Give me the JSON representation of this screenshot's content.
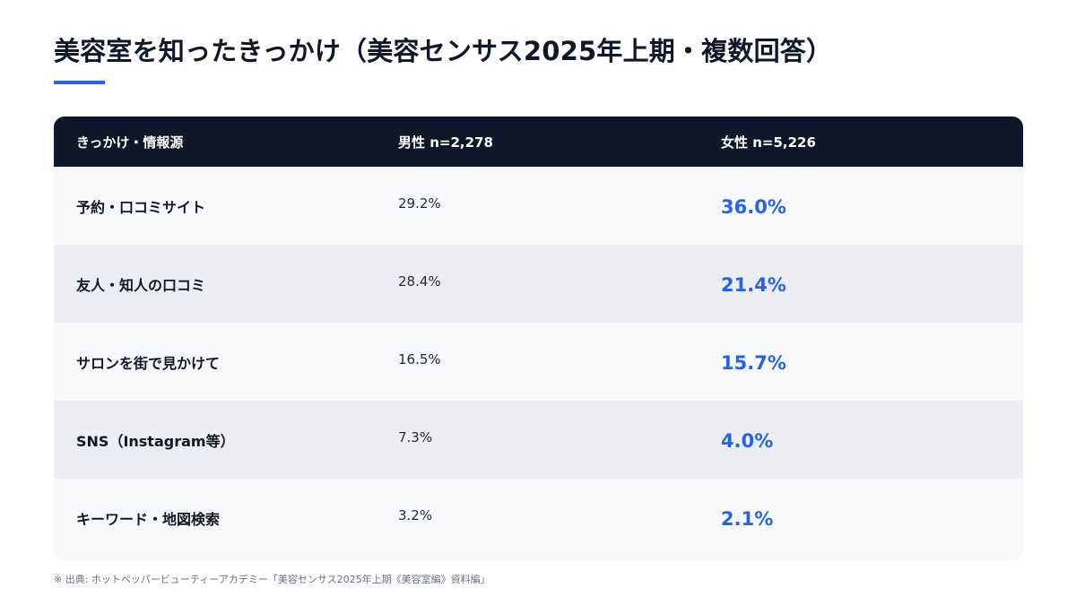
{
  "title": "美容室を知ったきっかけ（美容センサス2025年上期・複数回答）",
  "accent_color": "#2563eb",
  "table": {
    "headers": {
      "source": "きっかけ・情報源",
      "male": "男性 n=2,278",
      "female": "女性 n=5,226"
    },
    "rows": [
      {
        "label": "予約・口コミサイト",
        "male": "29.2%",
        "female": "36.0%"
      },
      {
        "label": "友人・知人の口コミ",
        "male": "28.4%",
        "female": "21.4%"
      },
      {
        "label": "サロンを街で見かけて",
        "male": "16.5%",
        "female": "15.7%"
      },
      {
        "label": "SNS（Instagram等）",
        "male": "7.3%",
        "female": "4.0%"
      },
      {
        "label": "キーワード・地図検索",
        "male": "3.2%",
        "female": "2.1%"
      }
    ]
  },
  "source_note": "※ 出典: ホットペッパービューティーアカデミー「美容センサス2025年上期《美容室編》資料編」"
}
